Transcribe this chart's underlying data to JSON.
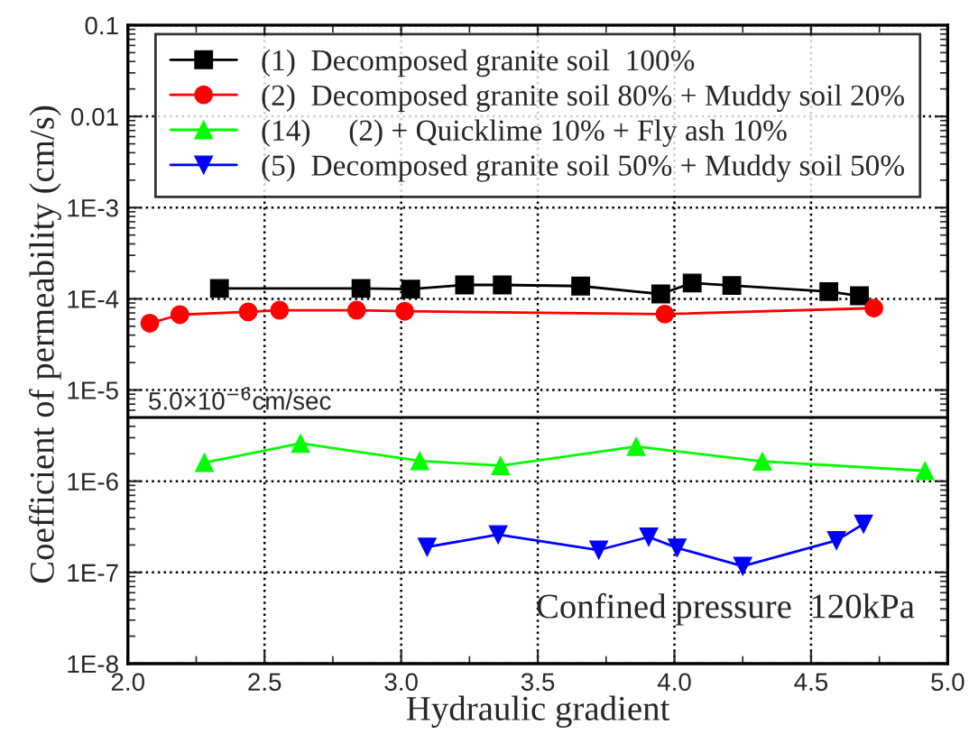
{
  "chart_data": {
    "type": "line",
    "xlabel": "Hydraulic gradient",
    "ylabel": "Coefficient of permeability (cm/s)",
    "log": "y",
    "grid": true,
    "legend": "top",
    "xlim": [
      2.0,
      5.0
    ],
    "xticks": [
      {
        "value": 2.0,
        "label": "2.0"
      },
      {
        "value": 2.5,
        "label": "2.5"
      },
      {
        "value": 3.0,
        "label": "3.0"
      },
      {
        "value": 3.5,
        "label": "3.5"
      },
      {
        "value": 4.0,
        "label": "4.0"
      },
      {
        "value": 4.5,
        "label": "4.5"
      },
      {
        "value": 5.0,
        "label": "5.0"
      }
    ],
    "ylim": [
      1e-08,
      0.1
    ],
    "yticks": [
      {
        "value": 1e-08,
        "label": "1E-8"
      },
      {
        "value": 1e-07,
        "label": "1E-7"
      },
      {
        "value": 1e-06,
        "label": "1E-6"
      },
      {
        "value": 1e-05,
        "label": "1E-5"
      },
      {
        "value": 0.0001,
        "label": "1E-4"
      },
      {
        "value": 0.001,
        "label": "1E-3"
      },
      0.01,
      0.1
    ],
    "series": [
      {
        "name": "(1)  Decomposed granite soil  100%",
        "color": "#000000",
        "marker": "square",
        "x": [
          2.335,
          2.853,
          3.035,
          3.232,
          3.37,
          3.657,
          3.95,
          4.065,
          4.21,
          4.565,
          4.677
        ],
        "values": [
          0.00013,
          0.00013,
          0.000128,
          0.000142,
          0.000142,
          0.000138,
          0.000113,
          0.000149,
          0.00014,
          0.00012,
          0.000108
        ]
      },
      {
        "name": "(2)  Decomposed granite soil 80% + Muddy soil 20%",
        "color": "#ff0000",
        "marker": "circle",
        "x": [
          2.08,
          2.19,
          2.44,
          2.555,
          2.837,
          3.013,
          3.965,
          4.73
        ],
        "values": [
          5.4e-05,
          6.7e-05,
          7.2e-05,
          7.5e-05,
          7.5e-05,
          7.3e-05,
          6.8e-05,
          7.9e-05
        ]
      },
      {
        "name": "(14)     (2) + Quicklime 10% + Fly ash 10%",
        "color": "#00ff00",
        "marker": "triangle",
        "x": [
          2.28,
          2.632,
          3.068,
          3.364,
          3.86,
          4.322,
          4.917
        ],
        "values": [
          1.6e-06,
          2.6e-06,
          1.67e-06,
          1.48e-06,
          2.4e-06,
          1.65e-06,
          1.3e-06
        ]
      },
      {
        "name": "(5)  Decomposed granite soil 50% + Muddy soil 50%",
        "color": "#0000ff",
        "marker": "triangle_down",
        "x": [
          3.095,
          3.355,
          3.723,
          3.906,
          4.01,
          4.25,
          4.593,
          4.692
        ],
        "values": [
          1.9e-07,
          2.6e-07,
          1.76e-07,
          2.45e-07,
          1.86e-07,
          1.17e-07,
          2.24e-07,
          3.4e-07
        ]
      }
    ],
    "ref_lines": [
      {
        "axis": "y",
        "value": 5e-06,
        "label": "5.0×10$^{−6}$cm/sec",
        "color": "#000000"
      }
    ],
    "annotations": [
      "Confined pressure  120kPa"
    ]
  }
}
